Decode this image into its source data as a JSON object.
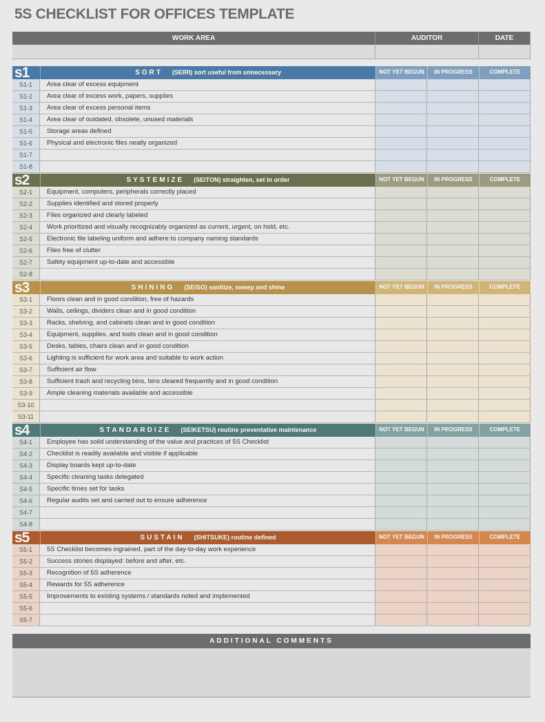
{
  "title": "5S CHECKLIST FOR OFFICES TEMPLATE",
  "header": {
    "work_area": "WORK AREA",
    "auditor": "AUDITOR",
    "date": "DATE",
    "work_area_value": "",
    "auditor_value": "",
    "date_value": ""
  },
  "status_columns": [
    "NOT YET BEGUN",
    "IN PROGRESS",
    "COMPLETE"
  ],
  "sections": [
    {
      "badge": "s1",
      "name": "SORT",
      "japanese": "(SEIRI)",
      "subtitle": "sort useful from unnecessary",
      "color": "#4b79a6",
      "header_light": "#7f9fbe",
      "cell": "#d6dee7",
      "items": [
        [
          "S1-1",
          "Area clear of excess equipment"
        ],
        [
          "S1-2",
          "Area clear of excess work, papers, supplies"
        ],
        [
          "S1-3",
          "Area clear of excess personal items"
        ],
        [
          "S1-4",
          "Area clear of outdated, obsolete, unused materials"
        ],
        [
          "S1-5",
          "Storage areas defined"
        ],
        [
          "S1-6",
          "Physical and electronic files neatly organized"
        ],
        [
          "S1-7",
          ""
        ],
        [
          "S1-8",
          ""
        ]
      ]
    },
    {
      "badge": "s2",
      "name": "SYSTEMIZE",
      "japanese": "(SEITON)",
      "subtitle": "straighten, set in order",
      "color": "#6b6f4f",
      "header_light": "#9a9b80",
      "cell": "#dcdcd1",
      "items": [
        [
          "S2-1",
          "Equipment, computers, peripherals correctly placed"
        ],
        [
          "S2-2",
          "Supplies identified and stored properly"
        ],
        [
          "S2-3",
          "Files organized and clearly labeled"
        ],
        [
          "S2-4",
          "Work prioritized and visually recognizably organized as current, urgent, on hold, etc."
        ],
        [
          "S2-5",
          "Electronic file labeling uniform and adhere to company naming standards"
        ],
        [
          "S2-6",
          "Files free of clutter"
        ],
        [
          "S2-7",
          "Safety equipment up-to-date and accessible"
        ],
        [
          "S2-8",
          ""
        ]
      ]
    },
    {
      "badge": "s3",
      "name": "SHINING",
      "japanese": "(SEISO)",
      "subtitle": "sanitize, sweep and shine",
      "color": "#b8914a",
      "header_light": "#d2b378",
      "cell": "#ebe3cf",
      "items": [
        [
          "S3-1",
          "Floors clean and in good condition, free of hazards"
        ],
        [
          "S3-2",
          "Walls, ceilings, dividers clean and in good condition"
        ],
        [
          "S3-3",
          "Racks, shelving, and cabinets clean and in good condition"
        ],
        [
          "S3-4",
          "Equipment, supplies, and tools clean and in good condition"
        ],
        [
          "S3-5",
          "Desks, tables, chairs clean and in good condition"
        ],
        [
          "S3-6",
          "Lighting is sufficient for work area and suitable to work action"
        ],
        [
          "S3-7",
          "Sufficient air flow"
        ],
        [
          "S3-8",
          "Sufficient trash and recycling bins, bins cleared frequently and in good condition"
        ],
        [
          "S3-9",
          "Ample cleaning materials available and accessible"
        ],
        [
          "S3-10",
          ""
        ],
        [
          "S3-11",
          ""
        ]
      ]
    },
    {
      "badge": "s4",
      "name": "STANDARDIZE",
      "japanese": "(SEIKETSU)",
      "subtitle": "routine preventative maintenance",
      "color": "#4f7977",
      "header_light": "#82a29f",
      "cell": "#d3dcda",
      "items": [
        [
          "S4-1",
          "Employee has solid understanding of the value and practices of 5S Checklist"
        ],
        [
          "S4-2",
          "Checklist is readily available and visible if applicable"
        ],
        [
          "S4-3",
          "Display boards kept up-to-date"
        ],
        [
          "S4-4",
          "Specific cleaning tasks delegated"
        ],
        [
          "S4-5",
          "Specific times set for tasks"
        ],
        [
          "S4-6",
          "Regular audits set and carried out to ensure adherence"
        ],
        [
          "S4-7",
          ""
        ],
        [
          "S4-8",
          ""
        ]
      ]
    },
    {
      "badge": "s5",
      "name": "SUSTAIN",
      "japanese": "(SHITSUKE)",
      "subtitle": "routine defined",
      "color": "#ad5a2c",
      "header_light": "#d4874e",
      "cell": "#ebd4c5",
      "items": [
        [
          "S5-1",
          "5S Checklist becomes ingrained, part of the day-to-day work experience"
        ],
        [
          "S5-2",
          "Success stories displayed: before and after, etc."
        ],
        [
          "S5-3",
          "Recognition of 5S adherence"
        ],
        [
          "S5-4",
          "Rewards for 5S adherence"
        ],
        [
          "S5-5",
          "Improvements to existing systems  / standards noted and implemented"
        ],
        [
          "S5-6",
          ""
        ],
        [
          "S5-7",
          ""
        ]
      ]
    }
  ],
  "comments": {
    "label": "ADDITIONAL COMMENTS",
    "value": ""
  }
}
